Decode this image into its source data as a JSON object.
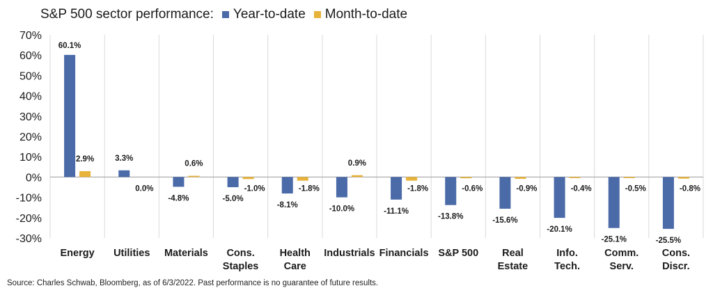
{
  "chart_data": {
    "type": "bar",
    "title": "S&P 500 sector performance:",
    "legend_position": "top",
    "grid": false,
    "ylim": [
      -30,
      70
    ],
    "yticks": [
      "70%",
      "60%",
      "50%",
      "40%",
      "30%",
      "20%",
      "10%",
      "0%",
      "-10%",
      "-20%",
      "-30%"
    ],
    "ytick_values": [
      70,
      60,
      50,
      40,
      30,
      20,
      10,
      0,
      -10,
      -20,
      -30
    ],
    "categories": [
      [
        "Energy"
      ],
      [
        "Utilities"
      ],
      [
        "Materials"
      ],
      [
        "Cons.",
        "Staples"
      ],
      [
        "Health",
        "Care"
      ],
      [
        "Industrials"
      ],
      [
        "Financials"
      ],
      [
        "S&P 500"
      ],
      [
        "Real",
        "Estate"
      ],
      [
        "Info.",
        "Tech."
      ],
      [
        "Comm.",
        "Serv."
      ],
      [
        "Cons.",
        "Discr."
      ]
    ],
    "series": [
      {
        "name": "Year-to-date",
        "color": "#4a6aa8",
        "values": [
          60.1,
          3.3,
          -4.8,
          -5.0,
          -8.1,
          -10.0,
          -11.1,
          -13.8,
          -15.6,
          -20.1,
          -25.1,
          -25.5
        ],
        "labels": [
          "60.1%",
          "3.3%",
          "-4.8%",
          "-5.0%",
          "-8.1%",
          "-10.0%",
          "-11.1%",
          "-13.8%",
          "-15.6%",
          "-20.1%",
          "-25.1%",
          "-25.5%"
        ]
      },
      {
        "name": "Month-to-date",
        "color": "#e8b33a",
        "values": [
          2.9,
          0.0,
          0.6,
          -1.0,
          -1.8,
          0.9,
          -1.8,
          -0.6,
          -0.9,
          -0.4,
          -0.5,
          -0.8
        ],
        "labels": [
          "2.9%",
          "0.0%",
          "0.6%",
          "-1.0%",
          "-1.8%",
          "0.9%",
          "-1.8%",
          "-0.6%",
          "-0.9%",
          "-0.4%",
          "-0.5%",
          "-0.8%"
        ]
      }
    ]
  },
  "source": "Source: Charles Schwab, Bloomberg, as of 6/3/2022.  Past performance is no guarantee of future results."
}
